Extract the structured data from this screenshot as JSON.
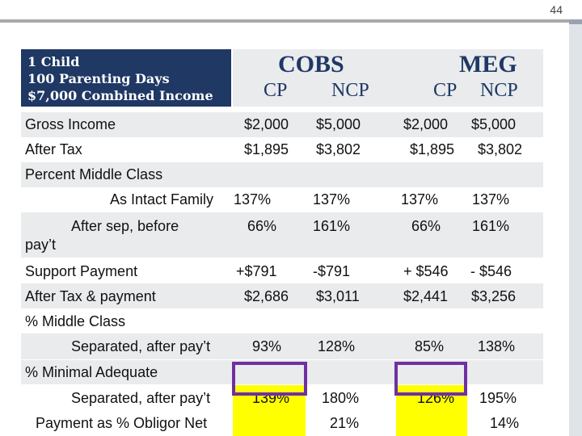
{
  "page_number": "44",
  "header": {
    "scenario_lines": [
      "1 Child",
      "100 Parenting Days",
      "$7,000 Combined Income"
    ],
    "groups": [
      {
        "name": "COBS",
        "cols": [
          "CP",
          "NCP"
        ]
      },
      {
        "name": "MEG",
        "cols": [
          "CP",
          "NCP"
        ]
      }
    ]
  },
  "rows": {
    "gross_income": {
      "label": "Gross Income",
      "values": [
        "$2,000",
        "$5,000",
        "$2,000",
        "$5,000"
      ]
    },
    "after_tax": {
      "label": "After Tax",
      "values": [
        "$1,895",
        "$3,802",
        "$1,895",
        "$3,802"
      ]
    },
    "percent_middle_class": {
      "label": "Percent Middle Class"
    },
    "as_intact_family": {
      "label": "As Intact Family",
      "values": [
        "137%",
        "137%",
        "137%",
        "137%"
      ]
    },
    "after_sep_before": {
      "label_line1": "After sep, before",
      "label_line2": "pay’t",
      "values": [
        "66%",
        "161%",
        "66%",
        "161%"
      ]
    },
    "support_payment": {
      "label": "Support Payment",
      "values": [
        "+$791",
        "-$791",
        "+ $546",
        "- $546"
      ]
    },
    "after_tax_payment": {
      "label": "After Tax & payment",
      "values": [
        "$2,686",
        "$3,011",
        "$2,441",
        "$3,256"
      ]
    },
    "pct_middle_class": {
      "label": "% Middle Class"
    },
    "separated_after_payt_1": {
      "label": "Separated, after pay’t",
      "values": [
        "93%",
        "128%",
        "85%",
        "138%"
      ]
    },
    "pct_minimal_adequate": {
      "label": "% Minimal Adequate"
    },
    "separated_after_payt_2": {
      "label": "Separated, after pay’t",
      "values": [
        "139%",
        "180%",
        "126%",
        "195%"
      ]
    },
    "payment_pct_obligor": {
      "label": "Payment as % Obligor Net",
      "values": [
        "",
        "21%",
        "",
        "14%"
      ]
    }
  },
  "colors": {
    "header_navy": "#1f3864",
    "row_shade": "#e9ebed",
    "highlight_yellow": "#ffff00",
    "box_purple": "#7030a0"
  }
}
